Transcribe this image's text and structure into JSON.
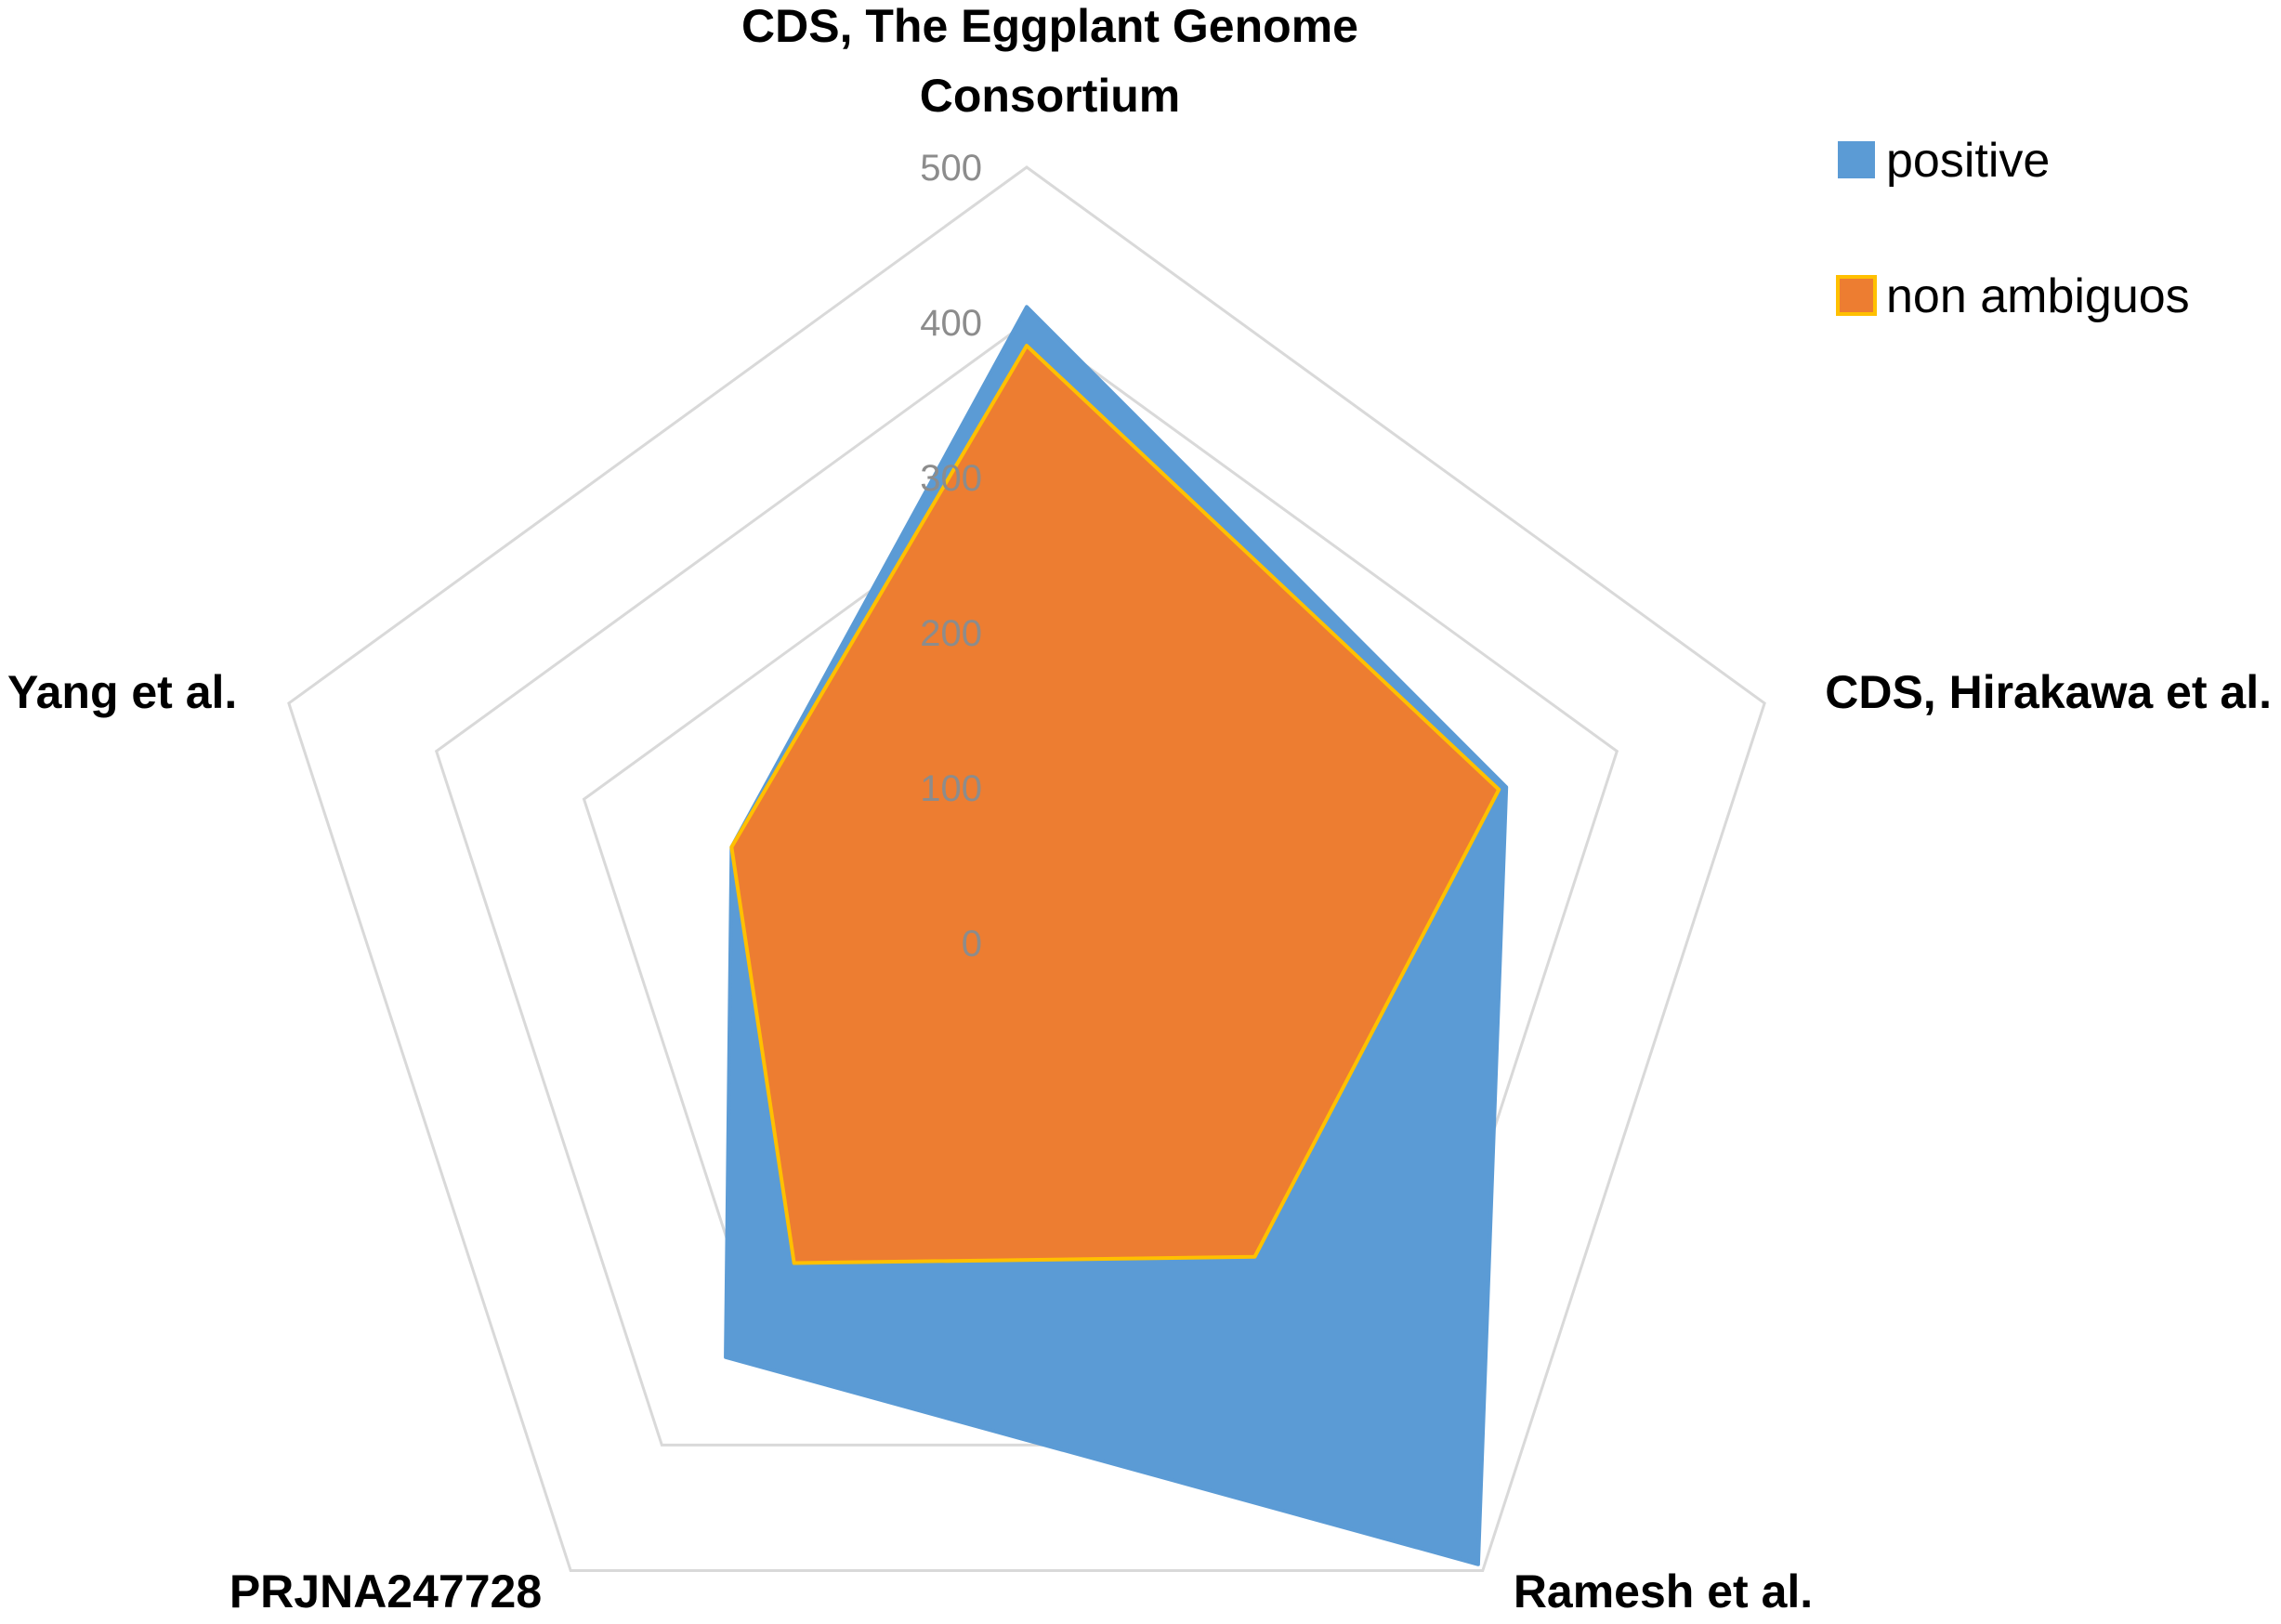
{
  "chart_data": {
    "type": "radar",
    "categories": [
      "CDS, The Eggplant Genome Consortium",
      "CDS, Hirakawa et al.",
      "Ramesh et al.",
      "PRJNA247728",
      "Yang et al."
    ],
    "series": [
      {
        "name": "positive",
        "values": [
          410,
          325,
          495,
          330,
          200
        ],
        "color": "#5b9bd5",
        "stroke": "#5b9bd5"
      },
      {
        "name": "non ambiguos",
        "values": [
          385,
          320,
          250,
          255,
          200
        ],
        "color": "#ed7d31",
        "stroke": "#ffc000"
      }
    ],
    "ylim": [
      0,
      500
    ],
    "ticks": [
      "0",
      "100",
      "200",
      "300",
      "400",
      "500"
    ],
    "tick_values": [
      0,
      100,
      200,
      300,
      400,
      500
    ],
    "legend_position": "top-right",
    "grid": true
  }
}
